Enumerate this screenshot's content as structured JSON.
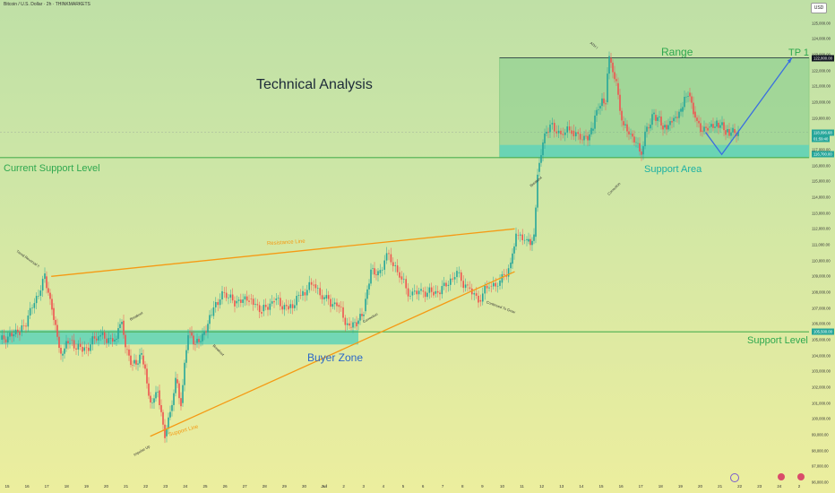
{
  "header": {
    "symbol_line": "Bitcoin / U.S. Dollar · 2h · THINKMARKETS",
    "currency_button": "USD"
  },
  "colors": {
    "zone_fill": "#5fd3b8",
    "range_fill": "#5fc07f",
    "support_line": "#4caf50",
    "trend_orange": "#f59a14",
    "projection_blue": "#3a6fe0",
    "candle_up": "#26a69a",
    "candle_down": "#ef5350",
    "label_green": "#2fa84f",
    "label_blue": "#2b67c9",
    "label_teal": "#1bb0a4"
  },
  "annotations": {
    "title": "Technical Analysis",
    "range": "Range",
    "tp1": "TP 1",
    "current_support": "Current Support Level",
    "support_area": "Support Area",
    "support_level": "Support Level",
    "buyer_zone": "Buyer Zone",
    "resistance_line": "Resistance Line",
    "support_line": "Support Line",
    "ath": "ATH !",
    "trend_reversal": "Trend Reversal !!",
    "breakout_1": "Breakout",
    "breakout_2": "Breakout",
    "breakout_3": "Breakout",
    "correction_1": "Correction",
    "correction_2": "Correction",
    "impulse_up": "Impulse Up",
    "continued_to_grow": "Continued To Grow"
  },
  "chart_data": {
    "type": "candlestick",
    "title": "Bitcoin / U.S. Dollar · 2h · THINKMARKETS",
    "ylim": [
      96000,
      126000
    ],
    "y_ticks": [
      "125,000.00",
      "124,000.00",
      "123,000.00",
      "122,000.00",
      "121,000.00",
      "120,000.00",
      "119,000.00",
      "118,000.00",
      "117,000.00",
      "116,000.00",
      "115,000.00",
      "114,000.00",
      "113,000.00",
      "112,000.00",
      "111,000.00",
      "110,000.00",
      "109,000.00",
      "108,000.00",
      "107,000.00",
      "106,000.00",
      "105,000.00",
      "104,000.00",
      "103,000.00",
      "102,000.00",
      "101,000.00",
      "100,000.00",
      "99,000.00",
      "98,000.00",
      "97,000.00",
      "96,000.00"
    ],
    "x_ticks": [
      "15",
      "16",
      "17",
      "18",
      "19",
      "20",
      "21",
      "22",
      "23",
      "24",
      "25",
      "26",
      "27",
      "28",
      "29",
      "30",
      "Jul",
      "2",
      "3",
      "4",
      "5",
      "6",
      "7",
      "8",
      "9",
      "10",
      "11",
      "12",
      "13",
      "14",
      "15",
      "16",
      "17",
      "18",
      "19",
      "20",
      "21",
      "22",
      "23",
      "24",
      "2"
    ],
    "price_flags": [
      {
        "label": "122,800.00",
        "value": 122800,
        "color": "#131722"
      },
      {
        "label": "118,096.68",
        "value": 118096,
        "color": "#26a69a"
      },
      {
        "label": "01:59:40",
        "value": 117700,
        "color": "#26a69a"
      },
      {
        "label": "116,700.00",
        "value": 116700,
        "color": "#26a69a"
      },
      {
        "label": "105,500.00",
        "value": 105500,
        "color": "#26a69a"
      }
    ],
    "levels": {
      "current_support": 116500,
      "support_level": 105500,
      "range_top": 122800,
      "support_area": [
        116500,
        117300
      ],
      "buyer_zone": [
        104700,
        105600
      ],
      "tp1": 122800
    },
    "trend_lines": {
      "resistance": [
        [
          "17",
          109000
        ],
        [
          "10",
          112000
        ]
      ],
      "support": [
        [
          "22",
          98900
        ],
        [
          "10",
          109300
        ]
      ]
    },
    "projection_path": [
      [
        "20",
        118100
      ],
      [
        "20",
        116700
      ],
      [
        "22",
        122800
      ]
    ],
    "price_path": [
      [
        0,
        105000
      ],
      [
        22,
        105500
      ],
      [
        36,
        107000
      ],
      [
        50,
        109000
      ],
      [
        58,
        107000
      ],
      [
        68,
        104000
      ],
      [
        78,
        105000
      ],
      [
        92,
        104300
      ],
      [
        110,
        105200
      ],
      [
        128,
        105000
      ],
      [
        136,
        106200
      ],
      [
        140,
        104400
      ],
      [
        148,
        103500
      ],
      [
        158,
        104000
      ],
      [
        168,
        101000
      ],
      [
        176,
        101800
      ],
      [
        184,
        98900
      ],
      [
        190,
        100500
      ],
      [
        196,
        102500
      ],
      [
        202,
        101000
      ],
      [
        210,
        105500
      ],
      [
        218,
        104800
      ],
      [
        226,
        105300
      ],
      [
        236,
        106500
      ],
      [
        248,
        108000
      ],
      [
        262,
        107300
      ],
      [
        278,
        107600
      ],
      [
        292,
        106800
      ],
      [
        306,
        107500
      ],
      [
        322,
        107000
      ],
      [
        338,
        108000
      ],
      [
        350,
        108500
      ],
      [
        362,
        107600
      ],
      [
        376,
        107200
      ],
      [
        390,
        105800
      ],
      [
        398,
        106000
      ],
      [
        406,
        106800
      ],
      [
        414,
        109500
      ],
      [
        422,
        109200
      ],
      [
        434,
        110400
      ],
      [
        446,
        109000
      ],
      [
        458,
        107800
      ],
      [
        470,
        108100
      ],
      [
        484,
        107900
      ],
      [
        498,
        108400
      ],
      [
        510,
        109200
      ],
      [
        522,
        108300
      ],
      [
        534,
        107500
      ],
      [
        546,
        108400
      ],
      [
        558,
        108600
      ],
      [
        570,
        109800
      ],
      [
        576,
        111600
      ],
      [
        588,
        111200
      ],
      [
        596,
        111500
      ],
      [
        600,
        115600
      ],
      [
        606,
        117400
      ],
      [
        614,
        118600
      ],
      [
        626,
        118000
      ],
      [
        638,
        118200
      ],
      [
        650,
        117600
      ],
      [
        660,
        118200
      ],
      [
        668,
        119600
      ],
      [
        676,
        120000
      ],
      [
        680,
        122800
      ],
      [
        688,
        121200
      ],
      [
        694,
        118800
      ],
      [
        702,
        118000
      ],
      [
        710,
        117400
      ],
      [
        716,
        116700
      ],
      [
        722,
        118400
      ],
      [
        730,
        119200
      ],
      [
        740,
        118400
      ],
      [
        750,
        118800
      ],
      [
        760,
        119400
      ],
      [
        768,
        120600
      ],
      [
        774,
        119400
      ],
      [
        782,
        118200
      ],
      [
        790,
        118400
      ],
      [
        800,
        118700
      ],
      [
        810,
        118100
      ],
      [
        818,
        118300
      ],
      [
        824,
        118100
      ]
    ]
  }
}
